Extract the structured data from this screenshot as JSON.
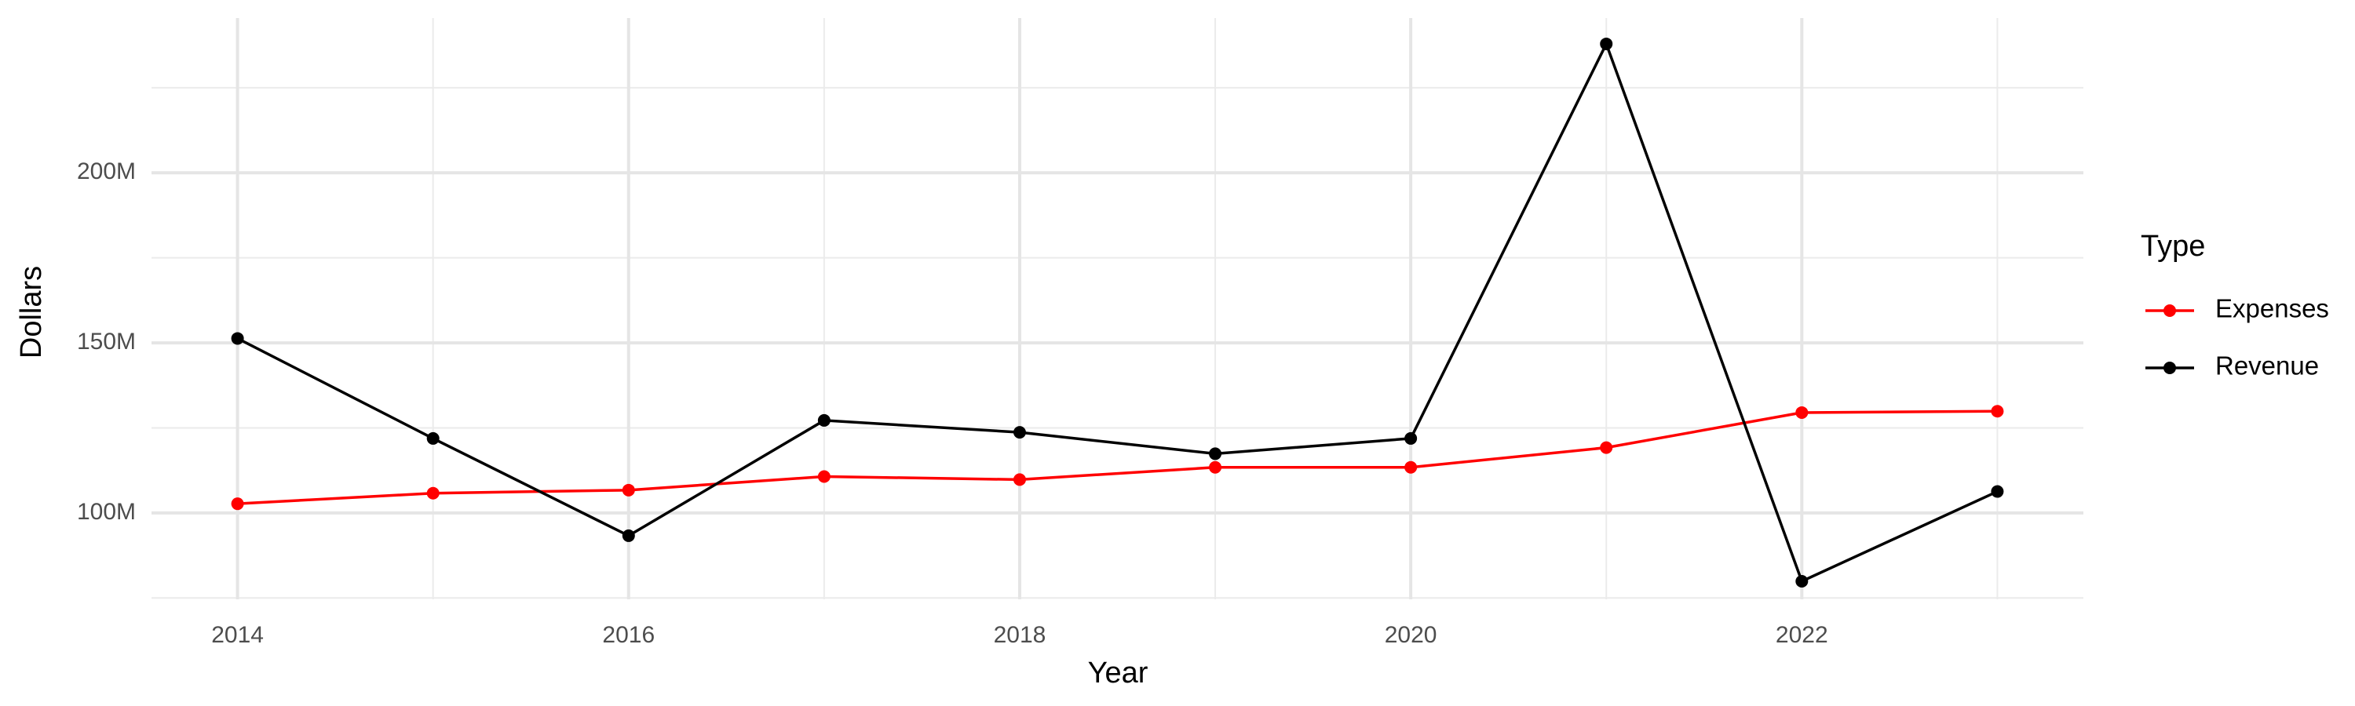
{
  "chart_data": {
    "type": "line",
    "x_label": "Year",
    "y_label": "Dollars",
    "legend_title": "Type",
    "legend_position": "right",
    "grid": true,
    "x": [
      2014,
      2015,
      2016,
      2017,
      2018,
      2019,
      2020,
      2021,
      2022,
      2023
    ],
    "series": [
      {
        "name": "Expenses",
        "color": "#ff0000",
        "values": [
          102700000,
          105800000,
          106700000,
          110700000,
          109800000,
          113400000,
          113400000,
          119200000,
          129500000,
          129900000
        ]
      },
      {
        "name": "Revenue",
        "color": "#000000",
        "values": [
          151300000,
          121900000,
          93300000,
          127200000,
          123700000,
          117400000,
          121900000,
          237900000,
          79900000,
          106300000
        ]
      }
    ],
    "xlim": [
      2013.56,
      2023.44
    ],
    "xticks": [
      2014,
      2016,
      2018,
      2020,
      2022
    ],
    "ylim": [
      74600000,
      245500000
    ],
    "yticks": [
      {
        "value": 100000000,
        "label": "100M"
      },
      {
        "value": 150000000,
        "label": "150M"
      },
      {
        "value": 200000000,
        "label": "200M"
      }
    ]
  }
}
